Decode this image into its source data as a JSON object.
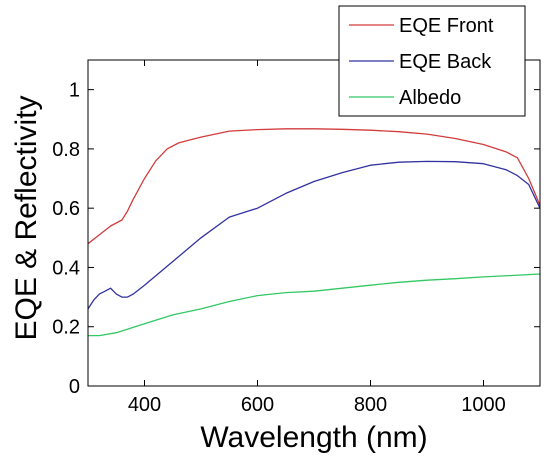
{
  "chart_data": {
    "type": "line",
    "title": "",
    "xlabel": "Wavelength (nm)",
    "ylabel": "EQE & Reflectivity",
    "xlim": [
      300,
      1100
    ],
    "ylim": [
      0,
      1.1
    ],
    "xticks": [
      400,
      600,
      800,
      1000
    ],
    "xtick_labels": [
      "400",
      "600",
      "800",
      "1000"
    ],
    "yticks": [
      0,
      0.2,
      0.4,
      0.6,
      0.8,
      1.0
    ],
    "ytick_labels": [
      "0",
      "0.2",
      "0.4",
      "0.6",
      "0.8",
      "1"
    ],
    "grid": false,
    "legend_position": "top-right",
    "series": [
      {
        "name": "EQE Front",
        "color": "#d23c3c",
        "x": [
          300,
          320,
          340,
          360,
          370,
          380,
          400,
          420,
          440,
          460,
          480,
          500,
          550,
          600,
          650,
          700,
          750,
          800,
          850,
          900,
          950,
          1000,
          1040,
          1060,
          1080,
          1100
        ],
        "y": [
          0.48,
          0.51,
          0.54,
          0.56,
          0.59,
          0.63,
          0.7,
          0.76,
          0.8,
          0.82,
          0.83,
          0.84,
          0.86,
          0.865,
          0.868,
          0.868,
          0.866,
          0.863,
          0.858,
          0.85,
          0.835,
          0.815,
          0.79,
          0.77,
          0.7,
          0.61
        ]
      },
      {
        "name": "EQE Back",
        "color": "#3232a0",
        "x": [
          300,
          310,
          320,
          330,
          340,
          350,
          360,
          370,
          380,
          400,
          450,
          500,
          550,
          600,
          650,
          700,
          750,
          800,
          850,
          900,
          950,
          1000,
          1040,
          1060,
          1080,
          1100
        ],
        "y": [
          0.26,
          0.29,
          0.31,
          0.32,
          0.33,
          0.31,
          0.3,
          0.3,
          0.31,
          0.34,
          0.42,
          0.5,
          0.57,
          0.6,
          0.65,
          0.69,
          0.72,
          0.745,
          0.755,
          0.758,
          0.757,
          0.75,
          0.73,
          0.71,
          0.68,
          0.6
        ]
      },
      {
        "name": "Albedo",
        "color": "#32c864",
        "x": [
          300,
          320,
          350,
          400,
          450,
          500,
          550,
          600,
          650,
          700,
          750,
          800,
          850,
          900,
          950,
          1000,
          1050,
          1100
        ],
        "y": [
          0.17,
          0.17,
          0.18,
          0.21,
          0.24,
          0.26,
          0.285,
          0.305,
          0.315,
          0.32,
          0.33,
          0.34,
          0.35,
          0.357,
          0.362,
          0.368,
          0.373,
          0.378
        ]
      }
    ]
  }
}
